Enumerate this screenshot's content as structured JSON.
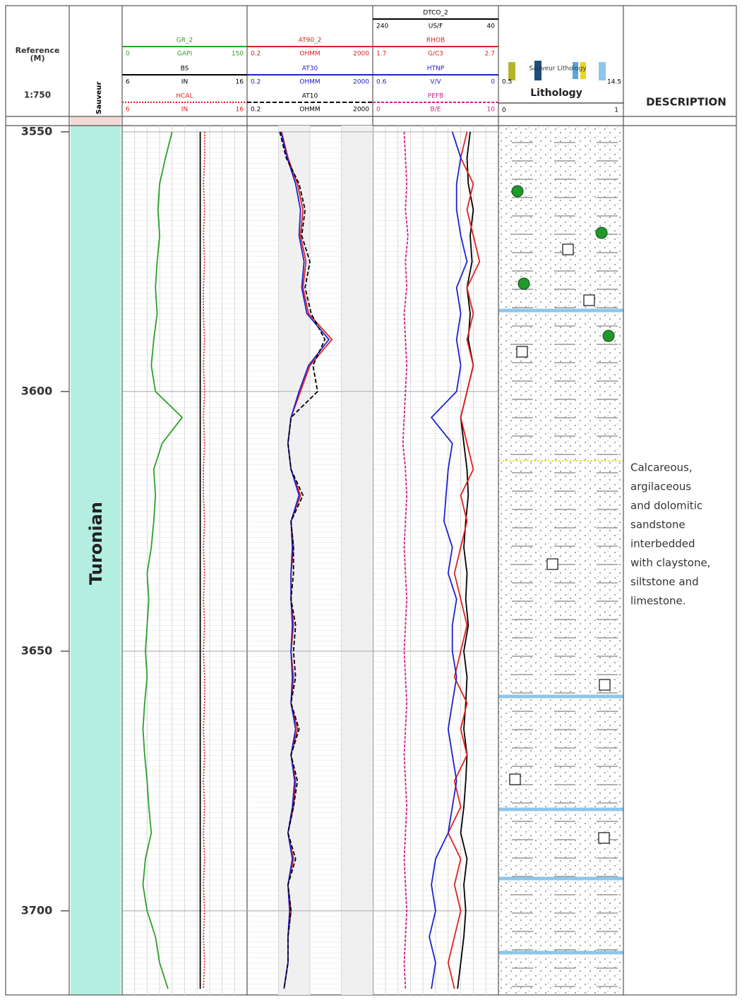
{
  "chart_data": {
    "type": "well-log",
    "depth_label": "Reference",
    "depth_unit": "(M)",
    "scale": "1:750",
    "ylim": [
      3548.8,
      3716.2
    ],
    "yticks": [
      3550,
      3600,
      3650,
      3700
    ],
    "depth": [
      3550,
      3555,
      3560,
      3565,
      3570,
      3575,
      3580,
      3585,
      3590,
      3595,
      3600,
      3605,
      3610,
      3615,
      3620,
      3625,
      3630,
      3635,
      3640,
      3645,
      3650,
      3655,
      3660,
      3665,
      3670,
      3675,
      3680,
      3685,
      3690,
      3695,
      3700,
      3705,
      3710,
      3715
    ],
    "zone_track": {
      "title": "Sauveur",
      "zones": [
        {
          "name": "Turonian",
          "color": "#b3eee0"
        }
      ]
    },
    "tracks": [
      {
        "log": false,
        "curves": [
          {
            "name": "GR_2",
            "unit": "GAPI",
            "xlim": [
              0,
              150
            ],
            "color": "#2ca02c",
            "dash": "none",
            "values": [
              60,
              52,
              45,
              43,
              45,
              42,
              40,
              42,
              38,
              35,
              40,
              72,
              48,
              38,
              40,
              38,
              35,
              30,
              32,
              30,
              28,
              30,
              27,
              25,
              27,
              30,
              32,
              35,
              28,
              25,
              30,
              40,
              45,
              55
            ]
          },
          {
            "name": "BS",
            "unit": "IN",
            "xlim": [
              6,
              16
            ],
            "color": "#000000",
            "dash": "none",
            "values": [
              12.25,
              12.25,
              12.25,
              12.25,
              12.25,
              12.25,
              12.25,
              12.25,
              12.25,
              12.25,
              12.25,
              12.25,
              12.25,
              12.25,
              12.25,
              12.25,
              12.25,
              12.25,
              12.25,
              12.25,
              12.25,
              12.25,
              12.25,
              12.25,
              12.25,
              12.25,
              12.25,
              12.25,
              12.25,
              12.25,
              12.25,
              12.25,
              12.25,
              12.25
            ]
          },
          {
            "name": "HCAL",
            "unit": "IN",
            "xlim": [
              6,
              16
            ],
            "color": "#e02020",
            "dash": "2,2",
            "values": [
              12.6,
              12.6,
              12.5,
              12.6,
              12.5,
              12.6,
              12.5,
              12.5,
              12.6,
              12.5,
              12.6,
              12.5,
              12.6,
              12.5,
              12.5,
              12.6,
              12.5,
              12.6,
              12.5,
              12.6,
              12.5,
              12.6,
              12.6,
              12.5,
              12.6,
              12.5,
              12.6,
              12.5,
              12.6,
              12.5,
              12.6,
              12.5,
              12.6,
              12.5
            ]
          }
        ]
      },
      {
        "log": true,
        "curves": [
          {
            "name": "AT90_2",
            "unit": "OHMM",
            "xlim": [
              0.2,
              2000
            ],
            "color": "#e02020",
            "dash": "none",
            "values": [
              2.5,
              4,
              8,
              12,
              10,
              15,
              12,
              18,
              100,
              20,
              10,
              5,
              4,
              5,
              10,
              5,
              6,
              5,
              5,
              6,
              5,
              6,
              5,
              8,
              5,
              7,
              6,
              4,
              6,
              4,
              5,
              4,
              4,
              3
            ]
          },
          {
            "name": "AT30",
            "unit": "OHMM",
            "xlim": [
              0.2,
              2000
            ],
            "color": "#2020d0",
            "dash": "none",
            "values": [
              2.4,
              3.8,
              7,
              10,
              9,
              13,
              11,
              16,
              80,
              18,
              9,
              5,
              4,
              5,
              9,
              5,
              5.5,
              5,
              5,
              5.5,
              5,
              5.5,
              5,
              7,
              5,
              6.5,
              5.5,
              4,
              5.5,
              4,
              4.5,
              4,
              4,
              3
            ]
          },
          {
            "name": "AT10",
            "unit": "OHMM",
            "xlim": [
              0.2,
              2000
            ],
            "color": "#000000",
            "dash": "6,3",
            "values": [
              2.2,
              3.5,
              9,
              14,
              11,
              20,
              14,
              22,
              60,
              25,
              35,
              5,
              4,
              5,
              12,
              5,
              6,
              6,
              5,
              7,
              6,
              7,
              5,
              9,
              5,
              8,
              6,
              4,
              7,
              4,
              5,
              4,
              4,
              3
            ]
          }
        ]
      },
      {
        "log": false,
        "curves": [
          {
            "name": "DTCO_2",
            "unit": "US/F",
            "xlim": [
              240,
              40
            ],
            "color": "#000000",
            "dash": "none",
            "values": [
              85,
              90,
              88,
              80,
              85,
              82,
              90,
              85,
              88,
              80,
              90,
              100,
              95,
              90,
              88,
              92,
              95,
              90,
              92,
              88,
              95,
              90,
              92,
              95,
              90,
              92,
              95,
              100,
              90,
              95,
              92,
              95,
              100,
              105
            ]
          },
          {
            "name": "RHOB",
            "unit": "G/C3",
            "xlim": [
              1.7,
              2.7
            ],
            "color": "#e02020",
            "dash": "none",
            "values": [
              2.45,
              2.4,
              2.5,
              2.45,
              2.5,
              2.55,
              2.45,
              2.5,
              2.45,
              2.5,
              2.45,
              2.4,
              2.45,
              2.5,
              2.4,
              2.45,
              2.4,
              2.35,
              2.4,
              2.45,
              2.4,
              2.35,
              2.45,
              2.4,
              2.45,
              2.35,
              2.4,
              2.3,
              2.4,
              2.35,
              2.4,
              2.35,
              2.3,
              2.35
            ]
          },
          {
            "name": "HTNP",
            "unit": "V/V",
            "xlim": [
              0.6,
              0
            ],
            "color": "#2020d0",
            "dash": "none",
            "values": [
              0.22,
              0.18,
              0.2,
              0.2,
              0.18,
              0.15,
              0.2,
              0.18,
              0.2,
              0.18,
              0.2,
              0.32,
              0.22,
              0.24,
              0.25,
              0.26,
              0.22,
              0.24,
              0.2,
              0.22,
              0.22,
              0.2,
              0.22,
              0.24,
              0.22,
              0.2,
              0.22,
              0.24,
              0.3,
              0.32,
              0.3,
              0.33,
              0.3,
              0.32
            ]
          },
          {
            "name": "PEFB",
            "unit": "B/E",
            "xlim": [
              0,
              10
            ],
            "color": "#d0208a",
            "dash": "4,2",
            "values": [
              2.5,
              2.6,
              2.7,
              2.6,
              2.8,
              2.6,
              2.7,
              2.5,
              2.6,
              2.7,
              2.6,
              2.5,
              2.4,
              2.6,
              2.7,
              2.6,
              2.5,
              2.6,
              2.7,
              2.6,
              2.5,
              2.6,
              2.7,
              2.6,
              2.5,
              2.6,
              2.7,
              2.6,
              2.5,
              2.6,
              2.7,
              2.6,
              2.5,
              2.6
            ]
          }
        ]
      }
    ],
    "lithology": {
      "title": "Lithology",
      "legend": "Sauveur Lithology",
      "scale_range": [
        0.5,
        14.5
      ],
      "xlim": [
        0,
        1
      ]
    },
    "description": {
      "title": "DESCRIPTION",
      "lines": [
        "Calcareous,",
        "argilaceous",
        "and dolomitic",
        "sandstone",
        "interbedded",
        "with claystone,",
        "siltstone and",
        "limestone."
      ]
    }
  }
}
